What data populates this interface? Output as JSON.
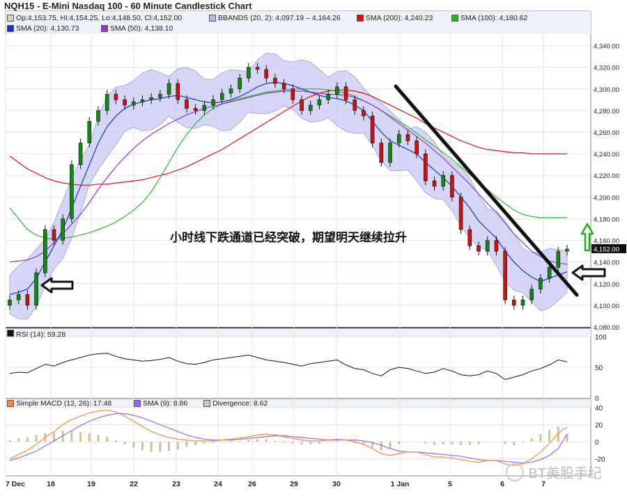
{
  "title": "NQH15 - E-Mini Nasdaq 100 - 60 Minute Candlestick Chart",
  "price_legend": [
    {
      "label": "Op:4,153.75, Hi:4,154.25, Lo:4,148.50, Cl:4,152.00",
      "color": "#d0d0d0"
    },
    {
      "label": "BBANDS (20, 2): 4,097.19 – 4,164.26",
      "color": "#b8b8f0"
    },
    {
      "label": "SMA (200): 4,240.23",
      "color": "#dd1111"
    },
    {
      "label": "SMA (100): 4,180.62",
      "color": "#22bb22"
    },
    {
      "label": "SMA (20): 4,130.73",
      "color": "#1133cc"
    },
    {
      "label": "SMA (50): 4,138.10",
      "color": "#9933cc"
    }
  ],
  "rsi_legend": "RSI (14): 59.28",
  "macd_legend": [
    {
      "label": "Simple MACD (12, 26): 17.48",
      "color": "#ff8833"
    },
    {
      "label": "SMA (9): 8.86",
      "color": "#9966ee"
    },
    {
      "label": "Divergence: 8.62",
      "color": "#ccccaa"
    }
  ],
  "annotation": "小时线下跌通道已经突破，期望明天继续拉升",
  "watermark": "BT美股手纪",
  "last_price_label": "4,152.00",
  "chart_data": [
    {
      "type": "candlestick",
      "ylim": [
        4080,
        4350
      ],
      "yticks": [
        4080,
        4100,
        4120,
        4140,
        4160,
        4180,
        4200,
        4220,
        4240,
        4260,
        4280,
        4300,
        4320,
        4340
      ],
      "ytick_labels": [
        "4,080.00",
        "4,100.00",
        "4,120.00",
        "4,140.00",
        "4,160.00",
        "4,180.00",
        "4,200.00",
        "4,220.00",
        "4,240.00",
        "4,260.00",
        "4,280.00",
        "4,300.00",
        "4,320.00",
        "4,340.00"
      ],
      "x_labels": [
        "7 Dec",
        "18",
        "19",
        "22",
        "23",
        "24",
        "26",
        "29",
        "30",
        "1 Jan",
        "5",
        "6",
        "7"
      ],
      "close": [
        4105,
        4110,
        4100,
        4130,
        4170,
        4160,
        4180,
        4230,
        4250,
        4270,
        4280,
        4295,
        4290,
        4285,
        4288,
        4290,
        4292,
        4295,
        4305,
        4290,
        4282,
        4280,
        4285,
        4290,
        4296,
        4300,
        4310,
        4320,
        4318,
        4310,
        4305,
        4300,
        4290,
        4280,
        4285,
        4290,
        4295,
        4302,
        4290,
        4280,
        4275,
        4250,
        4232,
        4250,
        4258,
        4252,
        4240,
        4215,
        4210,
        4220,
        4200,
        4170,
        4155,
        4150,
        4160,
        4150,
        4105,
        4100,
        4105,
        4115,
        4125,
        4135,
        4150,
        4152
      ],
      "sma20": [
        4110,
        4112,
        4115,
        4125,
        4140,
        4155,
        4170,
        4190,
        4210,
        4230,
        4250,
        4265,
        4275,
        4282,
        4286,
        4288,
        4290,
        4291,
        4293,
        4294,
        4292,
        4290,
        4288,
        4287,
        4288,
        4290,
        4293,
        4297,
        4302,
        4305,
        4306,
        4305,
        4303,
        4300,
        4297,
        4294,
        4292,
        4291,
        4289,
        4285,
        4280,
        4270,
        4260,
        4252,
        4248,
        4244,
        4240,
        4232,
        4225,
        4218,
        4210,
        4200,
        4190,
        4178,
        4170,
        4162,
        4150,
        4140,
        4132,
        4126,
        4122,
        4125,
        4128,
        4131
      ],
      "sma50": [
        4140,
        4141,
        4142,
        4145,
        4150,
        4158,
        4166,
        4175,
        4184,
        4195,
        4207,
        4218,
        4228,
        4237,
        4245,
        4252,
        4258,
        4263,
        4268,
        4272,
        4276,
        4279,
        4282,
        4284,
        4286,
        4288,
        4290,
        4292,
        4294,
        4296,
        4297,
        4298,
        4298,
        4298,
        4297,
        4296,
        4295,
        4295,
        4294,
        4292,
        4289,
        4285,
        4280,
        4274,
        4268,
        4262,
        4256,
        4250,
        4243,
        4236,
        4228,
        4220,
        4212,
        4203,
        4194,
        4186,
        4176,
        4166,
        4158,
        4150,
        4145,
        4141,
        4139,
        4138
      ],
      "sma100": [
        4190,
        4180,
        4170,
        4165,
        4162,
        4161,
        4162,
        4163,
        4165,
        4167,
        4170,
        4173,
        4177,
        4182,
        4188,
        4195,
        4205,
        4218,
        4232,
        4246,
        4258,
        4268,
        4276,
        4282,
        4286,
        4289,
        4291,
        4293,
        4295,
        4297,
        4298,
        4299,
        4300,
        4300,
        4300,
        4300,
        4299,
        4298,
        4296,
        4293,
        4289,
        4285,
        4280,
        4275,
        4270,
        4265,
        4259,
        4253,
        4247,
        4241,
        4235,
        4228,
        4221,
        4214,
        4207,
        4200,
        4194,
        4188,
        4184,
        4182,
        4181,
        4181,
        4181,
        4181
      ],
      "sma200": [
        4238,
        4232,
        4226,
        4222,
        4218,
        4215,
        4213,
        4212,
        4211,
        4211,
        4212,
        4212,
        4213,
        4214,
        4215,
        4216,
        4218,
        4220,
        4222,
        4225,
        4228,
        4232,
        4236,
        4240,
        4244,
        4249,
        4254,
        4259,
        4264,
        4269,
        4274,
        4279,
        4284,
        4289,
        4293,
        4296,
        4298,
        4299,
        4299,
        4298,
        4296,
        4293,
        4289,
        4285,
        4281,
        4277,
        4273,
        4268,
        4264,
        4260,
        4256,
        4252,
        4249,
        4246,
        4244,
        4243,
        4242,
        4241,
        4241,
        4240,
        4240,
        4240,
        4240,
        4240
      ]
    },
    {
      "type": "line",
      "name": "RSI (14)",
      "ylim": [
        0,
        100
      ],
      "yticks": [
        0,
        50,
        100
      ],
      "values": [
        40,
        42,
        41,
        48,
        55,
        52,
        58,
        62,
        66,
        70,
        72,
        73,
        68,
        64,
        62,
        60,
        61,
        63,
        66,
        60,
        56,
        55,
        58,
        62,
        64,
        66,
        68,
        70,
        66,
        62,
        60,
        58,
        55,
        52,
        56,
        58,
        60,
        62,
        54,
        48,
        46,
        40,
        36,
        46,
        50,
        48,
        44,
        40,
        42,
        48,
        44,
        38,
        36,
        38,
        44,
        40,
        30,
        34,
        38,
        44,
        48,
        54,
        62,
        59
      ]
    },
    {
      "type": "line",
      "name": "MACD",
      "ylim": [
        -40,
        40
      ],
      "yticks": [
        -20,
        0,
        20,
        40
      ],
      "macd": [
        -20,
        -15,
        -10,
        -3,
        5,
        12,
        20,
        26,
        30,
        34,
        36,
        37,
        35,
        30,
        24,
        18,
        12,
        8,
        5,
        3,
        2,
        1,
        1,
        1,
        2,
        3,
        4,
        6,
        8,
        9,
        8,
        6,
        4,
        2,
        1,
        1,
        2,
        3,
        2,
        0,
        -3,
        -8,
        -14,
        -16,
        -14,
        -12,
        -12,
        -15,
        -18,
        -18,
        -19,
        -21,
        -23,
        -24,
        -22,
        -22,
        -26,
        -28,
        -26,
        -20,
        -12,
        -2,
        10,
        17.48
      ],
      "signal": [
        -22,
        -19,
        -15,
        -11,
        -5,
        1,
        7,
        13,
        19,
        24,
        28,
        31,
        33,
        33,
        31,
        28,
        24,
        20,
        16,
        12,
        8,
        5,
        3,
        2,
        2,
        2,
        3,
        4,
        5,
        6,
        7,
        7,
        6,
        5,
        4,
        3,
        2,
        2,
        2,
        2,
        1,
        -1,
        -4,
        -8,
        -11,
        -12,
        -12,
        -13,
        -14,
        -15,
        -16,
        -17,
        -19,
        -21,
        -22,
        -22,
        -23,
        -24,
        -25,
        -24,
        -21,
        -16,
        -8,
        8.86
      ],
      "divergence": [
        2,
        4,
        5,
        8,
        10,
        11,
        13,
        13,
        11,
        10,
        8,
        6,
        2,
        -3,
        -7,
        -10,
        -12,
        -12,
        -11,
        -9,
        -6,
        -4,
        -2,
        -1,
        0,
        1,
        1,
        2,
        3,
        3,
        1,
        -1,
        -2,
        -3,
        -3,
        -2,
        0,
        1,
        0,
        -2,
        -4,
        -7,
        -10,
        -8,
        -3,
        0,
        0,
        -2,
        -4,
        -3,
        -3,
        -4,
        -4,
        -3,
        0,
        0,
        -3,
        -4,
        -1,
        4,
        9,
        14,
        18,
        8.62
      ]
    }
  ]
}
